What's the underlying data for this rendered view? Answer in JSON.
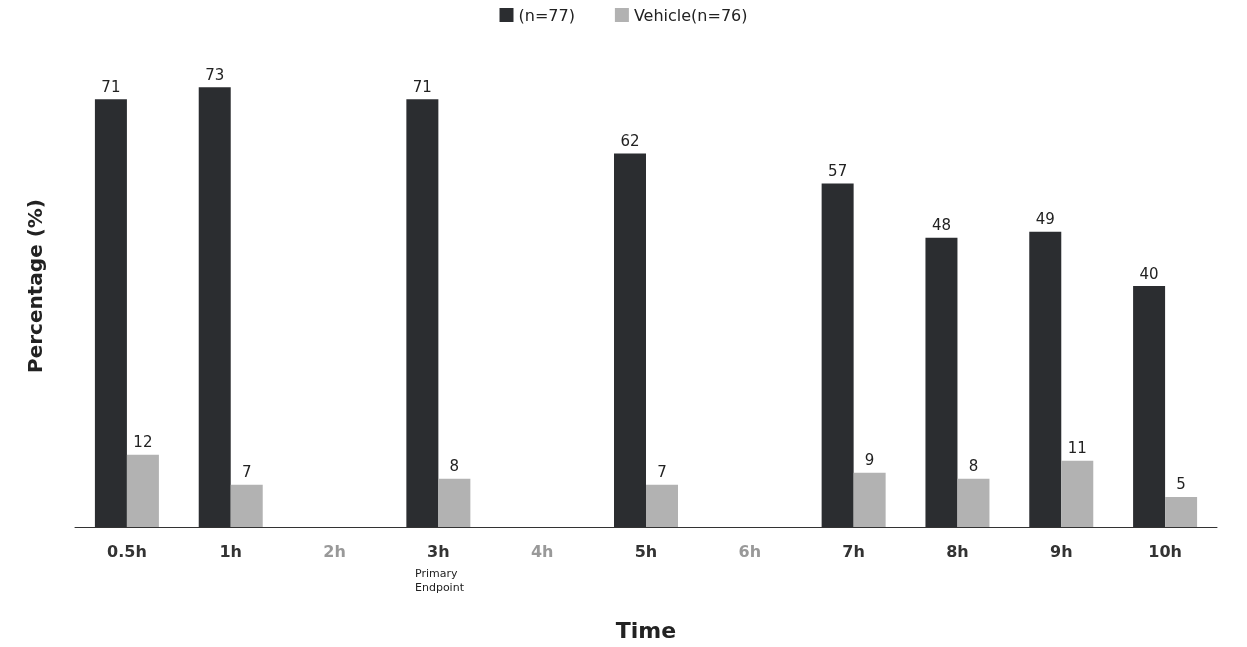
{
  "chart_data": {
    "type": "bar",
    "xlabel": "Time",
    "ylabel": "Percentage (%)",
    "categories": [
      "0.5h",
      "1h",
      "2h",
      "3h",
      "4h",
      "5h",
      "6h",
      "7h",
      "8h",
      "9h",
      "10h"
    ],
    "series": [
      {
        "name": "(n=77)",
        "color": "#2b2d30",
        "values": [
          71,
          73,
          null,
          71,
          null,
          62,
          null,
          57,
          48,
          49,
          40
        ]
      },
      {
        "name": "Vehicle(n=76)",
        "color": "#b2b2b2",
        "values": [
          12,
          7,
          null,
          8,
          null,
          7,
          null,
          9,
          8,
          11,
          5
        ]
      }
    ],
    "annotations": [
      "Primary Endpoint"
    ],
    "data_labels": true,
    "grid": false,
    "legend": "top"
  }
}
